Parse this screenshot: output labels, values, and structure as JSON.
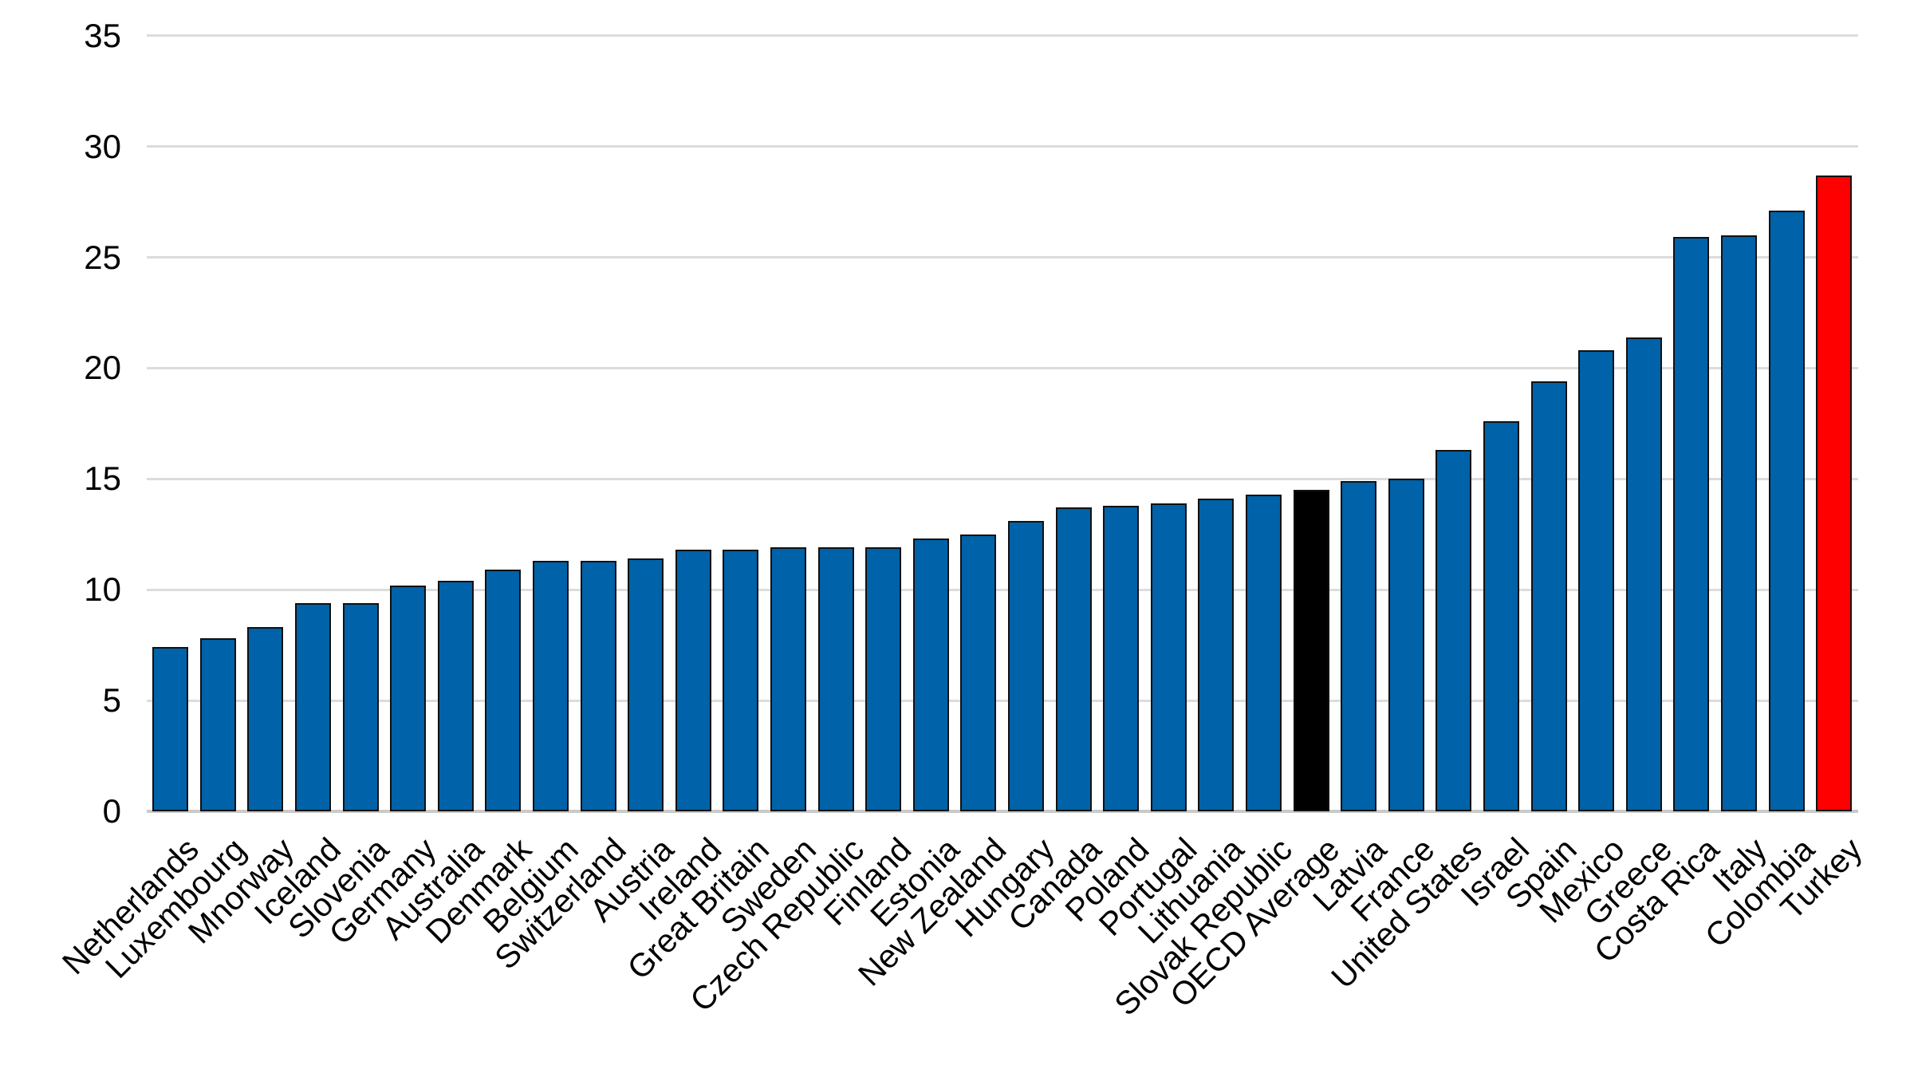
{
  "chart_data": {
    "type": "bar",
    "title": "",
    "categories": [
      "Netherlands",
      "Luxembourg",
      "Mnorway",
      "Iceland",
      "Slovenia",
      "Germany",
      "Australia",
      "Denmark",
      "Belgium",
      "Switzerland",
      "Austria",
      "Ireland",
      "Great Britain",
      "Sweden",
      "Czech Republic",
      "Finland",
      "Estonia",
      "New Zealand",
      "Hungary",
      "Canada",
      "Poland",
      "Portugal",
      "Lithuania",
      "Slovak Republic",
      "OECD Average",
      "Latvia",
      "France",
      "United States",
      "Israel",
      "Spain",
      "Mexico",
      "Greece",
      "Costa Rica",
      "Italy",
      "Colombia",
      "Turkey"
    ],
    "values": [
      7.4,
      7.8,
      8.3,
      9.4,
      9.4,
      10.2,
      10.4,
      10.9,
      11.3,
      11.3,
      11.4,
      11.8,
      11.8,
      11.9,
      11.9,
      11.9,
      12.3,
      12.5,
      13.1,
      13.7,
      13.8,
      13.9,
      14.1,
      14.3,
      14.5,
      14.9,
      15.0,
      16.3,
      17.6,
      19.4,
      20.8,
      21.4,
      25.9,
      26.0,
      27.1,
      28.7
    ],
    "bar_colors": [
      "#0062A8",
      "#0062A8",
      "#0062A8",
      "#0062A8",
      "#0062A8",
      "#0062A8",
      "#0062A8",
      "#0062A8",
      "#0062A8",
      "#0062A8",
      "#0062A8",
      "#0062A8",
      "#0062A8",
      "#0062A8",
      "#0062A8",
      "#0062A8",
      "#0062A8",
      "#0062A8",
      "#0062A8",
      "#0062A8",
      "#0062A8",
      "#0062A8",
      "#0062A8",
      "#0062A8",
      "#000000",
      "#0062A8",
      "#0062A8",
      "#0062A8",
      "#0062A8",
      "#0062A8",
      "#0062A8",
      "#0062A8",
      "#0062A8",
      "#0062A8",
      "#0062A8",
      "#FF0000"
    ],
    "default_bar_color": "#0062A8",
    "highlight_colors": {
      "OECD Average": "#000000",
      "Turkey": "#FF0000"
    },
    "xlabel": "",
    "ylabel": "",
    "ylim": [
      0,
      35
    ],
    "yticks": [
      0,
      5,
      10,
      15,
      20,
      25,
      30,
      35
    ],
    "grid": "horizontal",
    "legend": "none"
  }
}
